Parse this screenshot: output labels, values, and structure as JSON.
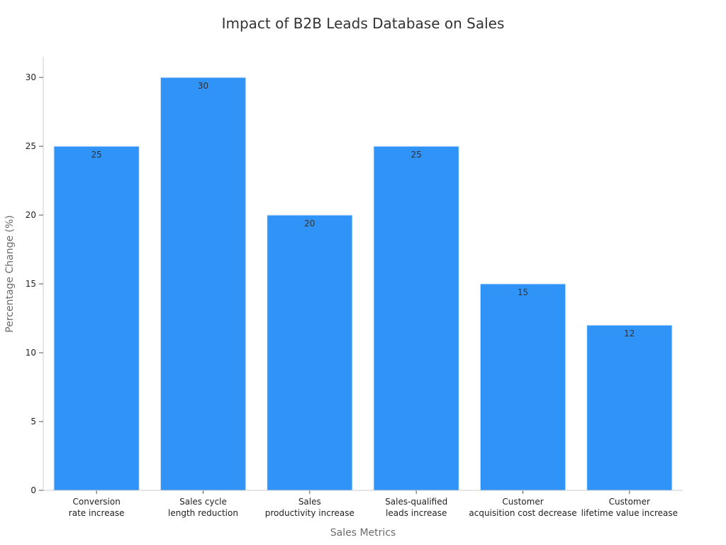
{
  "chart_data": {
    "type": "bar",
    "title": "Impact of B2B Leads Database on Sales",
    "xlabel": "Sales Metrics",
    "ylabel": "Percentage Change (%)",
    "categories": [
      [
        "Conversion",
        "rate increase"
      ],
      [
        "Sales cycle",
        "length reduction"
      ],
      [
        "Sales",
        "productivity increase"
      ],
      [
        "Sales-qualified",
        "leads increase"
      ],
      [
        "Customer",
        "acquisition cost decrease"
      ],
      [
        "Customer",
        "lifetime value increase"
      ]
    ],
    "values": [
      25,
      30,
      20,
      25,
      15,
      12
    ],
    "ylim": [
      0,
      31.5
    ],
    "yticks": [
      0,
      5,
      10,
      15,
      20,
      25,
      30
    ],
    "grid": false,
    "bar_color": "#2f93f7",
    "data_labels": true
  }
}
